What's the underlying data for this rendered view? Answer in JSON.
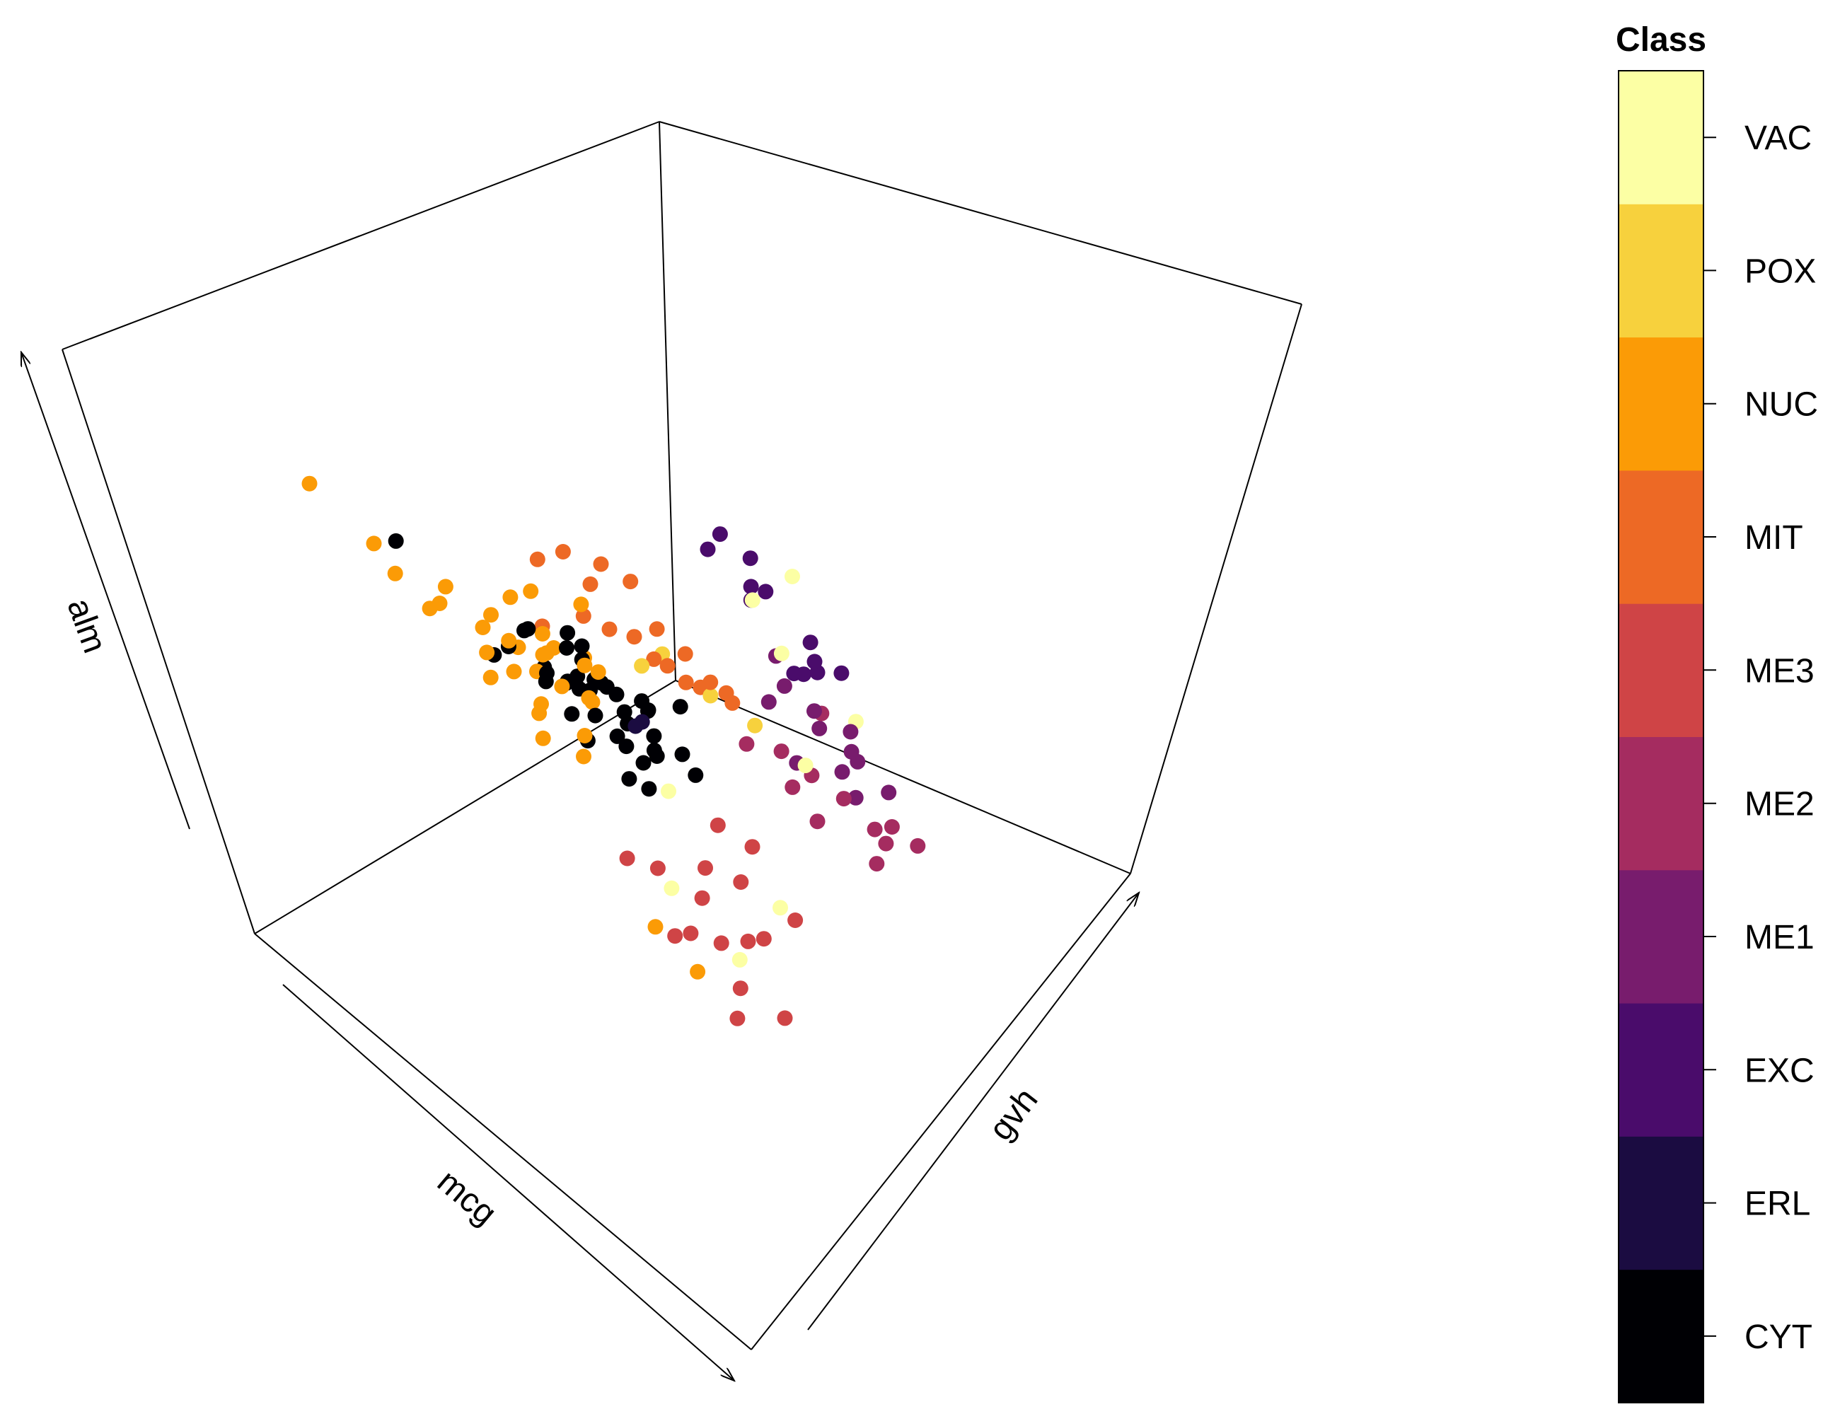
{
  "chart_data": {
    "type": "scatter",
    "title": "",
    "xlabel": "mcg",
    "ylabel": "gvh",
    "zlabel": "alm",
    "legend": {
      "title": "Class",
      "placement": "right",
      "entries": [
        {
          "name": "CYT",
          "color": "#000004"
        },
        {
          "name": "ERL",
          "color": "#1B0C41"
        },
        {
          "name": "EXC",
          "color": "#4A0C6B"
        },
        {
          "name": "ME1",
          "color": "#781C6D"
        },
        {
          "name": "ME2",
          "color": "#A52C60"
        },
        {
          "name": "ME3",
          "color": "#CF4446"
        },
        {
          "name": "MIT",
          "color": "#ED6925"
        },
        {
          "name": "NUC",
          "color": "#FB9B06"
        },
        {
          "name": "POX",
          "color": "#F7D13D"
        },
        {
          "name": "VAC",
          "color": "#FCFFA4"
        }
      ]
    },
    "grid": false,
    "series": [
      {
        "name": "CYT",
        "points": [
          [
            0.5,
            0.18,
            0.95
          ],
          [
            0.48,
            0.44,
            0.58
          ],
          [
            0.42,
            0.45,
            0.55
          ],
          [
            0.44,
            0.49,
            0.52
          ],
          [
            0.5,
            0.52,
            0.49
          ],
          [
            0.46,
            0.48,
            0.56
          ],
          [
            0.53,
            0.5,
            0.54
          ],
          [
            0.49,
            0.57,
            0.5
          ],
          [
            0.45,
            0.53,
            0.52
          ],
          [
            0.51,
            0.46,
            0.58
          ],
          [
            0.4,
            0.5,
            0.5
          ],
          [
            0.55,
            0.52,
            0.48
          ],
          [
            0.43,
            0.51,
            0.6
          ],
          [
            0.47,
            0.47,
            0.62
          ],
          [
            0.52,
            0.55,
            0.47
          ],
          [
            0.48,
            0.4,
            0.6
          ],
          [
            0.38,
            0.42,
            0.58
          ],
          [
            0.41,
            0.48,
            0.46
          ],
          [
            0.56,
            0.46,
            0.52
          ],
          [
            0.49,
            0.51,
            0.55
          ],
          [
            0.44,
            0.56,
            0.48
          ],
          [
            0.5,
            0.43,
            0.5
          ],
          [
            0.54,
            0.58,
            0.44
          ],
          [
            0.46,
            0.52,
            0.44
          ],
          [
            0.58,
            0.5,
            0.5
          ],
          [
            0.42,
            0.54,
            0.5
          ],
          [
            0.47,
            0.59,
            0.46
          ],
          [
            0.53,
            0.44,
            0.56
          ],
          [
            0.39,
            0.47,
            0.53
          ],
          [
            0.51,
            0.48,
            0.42
          ],
          [
            0.45,
            0.42,
            0.66
          ],
          [
            0.6,
            0.55,
            0.46
          ],
          [
            0.36,
            0.4,
            0.56
          ],
          [
            0.43,
            0.62,
            0.42
          ],
          [
            0.55,
            0.6,
            0.52
          ],
          [
            0.5,
            0.48,
            0.64
          ],
          [
            0.48,
            0.54,
            0.4
          ],
          [
            0.41,
            0.44,
            0.62
          ],
          [
            0.57,
            0.47,
            0.45
          ],
          [
            0.46,
            0.5,
            0.58
          ]
        ]
      },
      {
        "name": "ERL",
        "points": [
          [
            0.52,
            0.52,
            0.5
          ],
          [
            0.5,
            0.55,
            0.48
          ]
        ]
      },
      {
        "name": "EXC",
        "points": [
          [
            0.5,
            0.88,
            0.56
          ],
          [
            0.55,
            0.9,
            0.5
          ],
          [
            0.48,
            0.86,
            0.54
          ],
          [
            0.52,
            0.84,
            0.6
          ],
          [
            0.58,
            0.92,
            0.46
          ],
          [
            0.46,
            0.9,
            0.58
          ],
          [
            0.53,
            0.88,
            0.44
          ],
          [
            0.6,
            0.86,
            0.52
          ],
          [
            0.44,
            0.87,
            0.62
          ],
          [
            0.56,
            0.84,
            0.48
          ],
          [
            0.5,
            0.93,
            0.4
          ],
          [
            0.49,
            0.8,
            0.66
          ]
        ]
      },
      {
        "name": "ME1",
        "points": [
          [
            0.55,
            0.82,
            0.46
          ],
          [
            0.58,
            0.84,
            0.4
          ],
          [
            0.62,
            0.86,
            0.38
          ],
          [
            0.52,
            0.8,
            0.42
          ],
          [
            0.6,
            0.88,
            0.34
          ],
          [
            0.65,
            0.85,
            0.44
          ],
          [
            0.57,
            0.78,
            0.36
          ],
          [
            0.63,
            0.9,
            0.3
          ],
          [
            0.54,
            0.83,
            0.5
          ],
          [
            0.66,
            0.8,
            0.4
          ],
          [
            0.59,
            0.86,
            0.28
          ],
          [
            0.61,
            0.82,
            0.46
          ]
        ]
      },
      {
        "name": "ME2",
        "points": [
          [
            0.6,
            0.78,
            0.36
          ],
          [
            0.64,
            0.8,
            0.34
          ],
          [
            0.58,
            0.75,
            0.4
          ],
          [
            0.67,
            0.82,
            0.3
          ],
          [
            0.62,
            0.72,
            0.38
          ],
          [
            0.7,
            0.78,
            0.28
          ],
          [
            0.56,
            0.7,
            0.42
          ],
          [
            0.66,
            0.84,
            0.26
          ],
          [
            0.72,
            0.82,
            0.34
          ],
          [
            0.63,
            0.74,
            0.32
          ],
          [
            0.69,
            0.88,
            0.26
          ],
          [
            0.6,
            0.84,
            0.44
          ]
        ]
      },
      {
        "name": "ME3",
        "points": [
          [
            0.62,
            0.4,
            0.38
          ],
          [
            0.66,
            0.44,
            0.34
          ],
          [
            0.68,
            0.38,
            0.32
          ],
          [
            0.64,
            0.48,
            0.36
          ],
          [
            0.7,
            0.42,
            0.3
          ],
          [
            0.6,
            0.36,
            0.4
          ],
          [
            0.72,
            0.46,
            0.3
          ],
          [
            0.67,
            0.52,
            0.34
          ],
          [
            0.74,
            0.4,
            0.26
          ],
          [
            0.63,
            0.54,
            0.4
          ],
          [
            0.76,
            0.36,
            0.24
          ],
          [
            0.65,
            0.58,
            0.36
          ],
          [
            0.71,
            0.5,
            0.28
          ],
          [
            0.78,
            0.44,
            0.22
          ],
          [
            0.69,
            0.34,
            0.34
          ],
          [
            0.73,
            0.56,
            0.3
          ]
        ]
      },
      {
        "name": "MIT",
        "points": [
          [
            0.48,
            0.56,
            0.62
          ],
          [
            0.52,
            0.6,
            0.58
          ],
          [
            0.44,
            0.58,
            0.66
          ],
          [
            0.56,
            0.62,
            0.56
          ],
          [
            0.5,
            0.64,
            0.6
          ],
          [
            0.46,
            0.6,
            0.7
          ],
          [
            0.54,
            0.66,
            0.52
          ],
          [
            0.42,
            0.56,
            0.6
          ],
          [
            0.58,
            0.58,
            0.62
          ],
          [
            0.5,
            0.68,
            0.54
          ],
          [
            0.4,
            0.52,
            0.7
          ],
          [
            0.55,
            0.7,
            0.5
          ],
          [
            0.47,
            0.64,
            0.66
          ],
          [
            0.6,
            0.64,
            0.58
          ],
          [
            0.45,
            0.54,
            0.74
          ],
          [
            0.53,
            0.72,
            0.46
          ],
          [
            0.38,
            0.5,
            0.58
          ],
          [
            0.57,
            0.54,
            0.68
          ]
        ]
      },
      {
        "name": "NUC",
        "points": [
          [
            0.4,
            0.4,
            0.56
          ],
          [
            0.44,
            0.44,
            0.6
          ],
          [
            0.38,
            0.46,
            0.52
          ],
          [
            0.48,
            0.42,
            0.64
          ],
          [
            0.42,
            0.48,
            0.58
          ],
          [
            0.46,
            0.38,
            0.54
          ],
          [
            0.36,
            0.42,
            0.62
          ],
          [
            0.5,
            0.46,
            0.56
          ],
          [
            0.41,
            0.36,
            0.66
          ],
          [
            0.45,
            0.5,
            0.5
          ],
          [
            0.39,
            0.44,
            0.48
          ],
          [
            0.52,
            0.4,
            0.62
          ],
          [
            0.43,
            0.42,
            0.7
          ],
          [
            0.37,
            0.38,
            0.58
          ],
          [
            0.49,
            0.48,
            0.6
          ],
          [
            0.35,
            0.46,
            0.54
          ],
          [
            0.47,
            0.36,
            0.68
          ],
          [
            0.44,
            0.52,
            0.56
          ],
          [
            0.3,
            0.3,
            0.7
          ],
          [
            0.28,
            0.36,
            0.6
          ],
          [
            0.4,
            0.32,
            0.74
          ],
          [
            0.33,
            0.4,
            0.5
          ],
          [
            0.46,
            0.44,
            0.44
          ],
          [
            0.51,
            0.42,
            0.52
          ],
          [
            0.42,
            0.4,
            0.46
          ],
          [
            0.55,
            0.46,
            0.64
          ],
          [
            0.38,
            0.5,
            0.64
          ],
          [
            0.48,
            0.52,
            0.68
          ],
          [
            0.34,
            0.34,
            0.66
          ],
          [
            0.43,
            0.46,
            0.62
          ],
          [
            0.2,
            0.26,
            0.8
          ],
          [
            0.24,
            0.32,
            0.7
          ],
          [
            0.7,
            0.3,
            0.38
          ],
          [
            0.72,
            0.34,
            0.3
          ]
        ]
      },
      {
        "name": "POX",
        "points": [
          [
            0.52,
            0.62,
            0.58
          ],
          [
            0.56,
            0.66,
            0.52
          ],
          [
            0.48,
            0.6,
            0.54
          ],
          [
            0.6,
            0.7,
            0.48
          ]
        ]
      },
      {
        "name": "VAC",
        "points": [
          [
            0.6,
            0.8,
            0.56
          ],
          [
            0.66,
            0.86,
            0.46
          ],
          [
            0.54,
            0.82,
            0.6
          ],
          [
            0.62,
            0.76,
            0.4
          ],
          [
            0.58,
            0.5,
            0.44
          ],
          [
            0.64,
            0.4,
            0.36
          ],
          [
            0.7,
            0.56,
            0.3
          ],
          [
            0.56,
            0.9,
            0.62
          ],
          [
            0.68,
            0.46,
            0.24
          ]
        ]
      }
    ]
  }
}
